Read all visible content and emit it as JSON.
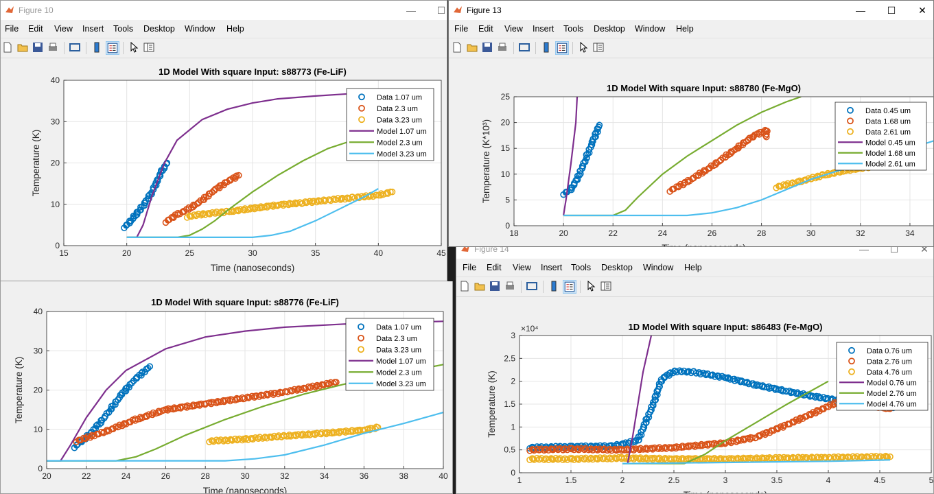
{
  "menu": [
    "File",
    "Edit",
    "View",
    "Insert",
    "Tools",
    "Desktop",
    "Window",
    "Help"
  ],
  "figures": {
    "fig10": {
      "title": "Figure 10"
    },
    "fig13": {
      "title": "Figure 13"
    },
    "fig14": {
      "title": "Figure 14"
    }
  },
  "colors": {
    "blue": "#0072bd",
    "orange": "#d95319",
    "yellow": "#edb120",
    "purple": "#7e2f8e",
    "green": "#77ac30",
    "cyan": "#4dbeee"
  },
  "chart_data": [
    {
      "id": "fig10",
      "type": "scatter",
      "title": "1D Model With square Input: s88773 (Fe-LiF)",
      "xlabel": "Time (nanoseconds)",
      "ylabel": "Temperature (K)",
      "xlim": [
        15,
        45
      ],
      "ylim": [
        0,
        40
      ],
      "xticks": [
        "15",
        "20",
        "25",
        "30",
        "35",
        "40",
        "45"
      ],
      "yticks": [
        "0",
        "10",
        "20",
        "30",
        "40"
      ],
      "grid": true,
      "legend": "top-right",
      "series": [
        {
          "name": "Data 1.07 um",
          "kind": "data",
          "color": "blue",
          "points": [
            [
              19.8,
              4.5
            ],
            [
              20.2,
              5.5
            ],
            [
              20.6,
              7
            ],
            [
              21,
              8.5
            ],
            [
              21.5,
              10.5
            ],
            [
              22,
              13
            ],
            [
              22.4,
              15.5
            ],
            [
              22.8,
              18
            ],
            [
              23.2,
              20
            ]
          ]
        },
        {
          "name": "Data 2.3 um",
          "kind": "data",
          "color": "orange",
          "points": [
            [
              23.1,
              5.8
            ],
            [
              24,
              7.5
            ],
            [
              25,
              9
            ],
            [
              26,
              11
            ],
            [
              27,
              13.5
            ],
            [
              28,
              15.5
            ],
            [
              28.9,
              17
            ]
          ]
        },
        {
          "name": "Data 3.23 um",
          "kind": "data",
          "color": "yellow",
          "points": [
            [
              24.8,
              7
            ],
            [
              26,
              7.6
            ],
            [
              28,
              8.2
            ],
            [
              30,
              9
            ],
            [
              32,
              9.8
            ],
            [
              34,
              10.4
            ],
            [
              36,
              11
            ],
            [
              38,
              11.6
            ],
            [
              40,
              12.2
            ],
            [
              41.1,
              13
            ]
          ]
        },
        {
          "name": "Model 1.07 um",
          "kind": "model",
          "color": "purple",
          "points": [
            [
              20,
              2
            ],
            [
              20.8,
              2
            ],
            [
              21.3,
              5
            ],
            [
              22,
              12
            ],
            [
              23,
              20
            ],
            [
              24,
              25.5
            ],
            [
              26,
              30.5
            ],
            [
              28,
              33
            ],
            [
              30,
              34.5
            ],
            [
              32,
              35.5
            ],
            [
              35,
              36.2
            ],
            [
              38,
              36.8
            ],
            [
              40,
              37
            ]
          ]
        },
        {
          "name": "Model 2.3 um",
          "kind": "model",
          "color": "green",
          "points": [
            [
              20,
              2
            ],
            [
              24,
              2
            ],
            [
              25,
              2.5
            ],
            [
              26,
              4
            ],
            [
              27,
              6
            ],
            [
              28,
              8.5
            ],
            [
              30,
              13
            ],
            [
              32,
              17
            ],
            [
              34,
              20.5
            ],
            [
              36,
              23.5
            ],
            [
              38,
              25.5
            ],
            [
              39.5,
              27
            ]
          ]
        },
        {
          "name": "Model 3.23 um",
          "kind": "model",
          "color": "cyan",
          "points": [
            [
              20,
              2
            ],
            [
              30,
              2
            ],
            [
              31.5,
              2.5
            ],
            [
              33,
              3.5
            ],
            [
              35,
              6
            ],
            [
              37,
              9
            ],
            [
              39,
              12
            ],
            [
              40,
              13.8
            ]
          ]
        }
      ]
    },
    {
      "id": "fig13",
      "type": "scatter",
      "title": "1D Model With square Input: s88780 (Fe-MgO)",
      "xlabel": "Time (nanoseconds)",
      "ylabel": "Temperature (K*10³)",
      "xlim": [
        18,
        35
      ],
      "ylim": [
        0,
        25
      ],
      "xticks": [
        "18",
        "20",
        "22",
        "24",
        "26",
        "28",
        "30",
        "32",
        "34"
      ],
      "yticks": [
        "0",
        "5",
        "10",
        "15",
        "20",
        "25"
      ],
      "grid": true,
      "legend": "top-right",
      "series": [
        {
          "name": "Data 0.45 um",
          "kind": "data",
          "color": "blue",
          "points": [
            [
              20,
              6.2
            ],
            [
              20.3,
              7
            ],
            [
              20.6,
              9.5
            ],
            [
              20.9,
              13
            ],
            [
              21.2,
              16.5
            ],
            [
              21.45,
              19.5
            ]
          ]
        },
        {
          "name": "Data 1.68 um",
          "kind": "data",
          "color": "orange",
          "points": [
            [
              24.3,
              6.8
            ],
            [
              25,
              8.5
            ],
            [
              26,
              11.5
            ],
            [
              27,
              15
            ],
            [
              27.7,
              17.5
            ],
            [
              28.2,
              18.5
            ],
            [
              28.2,
              17.2
            ]
          ]
        },
        {
          "name": "Data 2.61 um",
          "kind": "data",
          "color": "yellow",
          "points": [
            [
              28.6,
              7.5
            ],
            [
              29.5,
              8.5
            ],
            [
              30.5,
              9.8
            ],
            [
              31.5,
              10.8
            ],
            [
              32.5,
              11.5
            ]
          ]
        },
        {
          "name": "Model 0.45 um",
          "kind": "model",
          "color": "purple",
          "points": [
            [
              20,
              2
            ],
            [
              20.1,
              5
            ],
            [
              20.3,
              12
            ],
            [
              20.5,
              20
            ],
            [
              20.55,
              25
            ]
          ]
        },
        {
          "name": "Model 1.68 um",
          "kind": "model",
          "color": "green",
          "points": [
            [
              20,
              2
            ],
            [
              22,
              2
            ],
            [
              22.5,
              3
            ],
            [
              23,
              5.5
            ],
            [
              24,
              10
            ],
            [
              25,
              13.5
            ],
            [
              26,
              16.5
            ],
            [
              27,
              19.5
            ],
            [
              28,
              22
            ],
            [
              29,
              24
            ],
            [
              29.6,
              25
            ]
          ]
        },
        {
          "name": "Model 2.61 um",
          "kind": "model",
          "color": "cyan",
          "points": [
            [
              20,
              2
            ],
            [
              25,
              2
            ],
            [
              26,
              2.5
            ],
            [
              27,
              3.5
            ],
            [
              28,
              5
            ],
            [
              29,
              7
            ],
            [
              30,
              9
            ],
            [
              31,
              10.5
            ],
            [
              32,
              12
            ],
            [
              33,
              13.5
            ],
            [
              34,
              15
            ],
            [
              35,
              16.5
            ]
          ]
        }
      ]
    },
    {
      "id": "fig14",
      "type": "scatter",
      "title": "1D Model With square Input: s86483 (Fe-MgO)",
      "xlabel": "Time (nanoseconds)",
      "ylabel": "Temperature (K)",
      "exponent": "×10⁴",
      "xlim": [
        1,
        5
      ],
      "ylim": [
        0,
        3
      ],
      "xticks": [
        "1",
        "1.5",
        "2",
        "2.5",
        "3",
        "3.5",
        "4",
        "4.5",
        "5"
      ],
      "yticks": [
        "0",
        "0.5",
        "1",
        "1.5",
        "2",
        "2.5",
        "3"
      ],
      "grid": true,
      "legend": "top-right",
      "series": [
        {
          "name": "Data 0.76 um",
          "kind": "data",
          "color": "blue",
          "points": [
            [
              1.1,
              0.55
            ],
            [
              1.5,
              0.57
            ],
            [
              1.9,
              0.58
            ],
            [
              2.15,
              0.7
            ],
            [
              2.3,
              1.5
            ],
            [
              2.38,
              2.05
            ],
            [
              2.5,
              2.22
            ],
            [
              2.7,
              2.2
            ],
            [
              3,
              2.08
            ],
            [
              3.3,
              1.92
            ],
            [
              3.6,
              1.78
            ],
            [
              3.9,
              1.65
            ],
            [
              4.2,
              1.55
            ],
            [
              4.5,
              1.45
            ],
            [
              4.63,
              1.42
            ]
          ]
        },
        {
          "name": "Data 2.76 um",
          "kind": "data",
          "color": "orange",
          "points": [
            [
              1.1,
              0.5
            ],
            [
              1.5,
              0.52
            ],
            [
              2,
              0.5
            ],
            [
              2.5,
              0.55
            ],
            [
              3,
              0.65
            ],
            [
              3.3,
              0.78
            ],
            [
              3.6,
              1.05
            ],
            [
              3.9,
              1.35
            ],
            [
              4.1,
              1.55
            ],
            [
              4.3,
              1.5
            ],
            [
              4.6,
              1.4
            ]
          ]
        },
        {
          "name": "Data 4.76 um",
          "kind": "data",
          "color": "yellow",
          "points": [
            [
              1.1,
              0.3
            ],
            [
              1.5,
              0.3
            ],
            [
              2,
              0.32
            ],
            [
              2.5,
              0.3
            ],
            [
              3,
              0.3
            ],
            [
              3.5,
              0.32
            ],
            [
              4,
              0.33
            ],
            [
              4.6,
              0.35
            ]
          ]
        },
        {
          "name": "Model 0.76 um",
          "kind": "model",
          "color": "purple",
          "points": [
            [
              2.05,
              0.2
            ],
            [
              2.1,
              0.8
            ],
            [
              2.15,
              1.5
            ],
            [
              2.2,
              2.2
            ],
            [
              2.28,
              3
            ]
          ]
        },
        {
          "name": "Model 2.76 um",
          "kind": "model",
          "color": "green",
          "points": [
            [
              2,
              0.2
            ],
            [
              2.6,
              0.2
            ],
            [
              2.8,
              0.4
            ],
            [
              3,
              0.7
            ],
            [
              3.3,
              1.1
            ],
            [
              3.6,
              1.5
            ],
            [
              4,
              2
            ]
          ]
        },
        {
          "name": "Model 4.76 um",
          "kind": "model",
          "color": "cyan",
          "points": [
            [
              2,
              0.2
            ],
            [
              4,
              0.25
            ],
            [
              4.6,
              0.28
            ]
          ]
        }
      ]
    }
  ]
}
